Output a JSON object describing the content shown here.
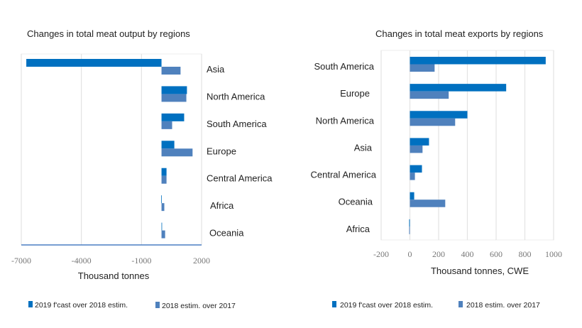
{
  "colors": {
    "series1": "#0070c0",
    "series2": "#4f81bd",
    "grid": "#e3e3e3",
    "axis": "#4a7ec4"
  },
  "chart_data": [
    {
      "type": "bar",
      "orientation": "horizontal",
      "title": "Changes in total meat output by regions",
      "xlabel": "Thousand tonnes",
      "xlim": [
        -7000,
        2000
      ],
      "xticks": [
        "-7000",
        "-4000",
        "-1000",
        "2000"
      ],
      "xtick_values": [
        -7000,
        -4000,
        -1000,
        2000
      ],
      "grid": true,
      "legend": "bottom",
      "categories": [
        "Asia",
        "North America",
        "South America",
        "Europe",
        "Central America",
        "Africa",
        "Oceania"
      ],
      "series": [
        {
          "name": "2019 f'cast over 2018 estim.",
          "values": [
            -6750,
            1270,
            1130,
            640,
            250,
            -20,
            0
          ]
        },
        {
          "name": "2018 estim. over 2017",
          "values": [
            950,
            1240,
            530,
            1550,
            250,
            140,
            180
          ]
        }
      ]
    },
    {
      "type": "bar",
      "orientation": "horizontal",
      "title": "Changes in total meat exports by regions",
      "xlabel": "Thousand tonnes, CWE",
      "xlim": [
        -200,
        1000
      ],
      "xticks": [
        "-200",
        "0",
        "200",
        "400",
        "600",
        "800",
        "1000"
      ],
      "xtick_values": [
        -200,
        0,
        200,
        400,
        600,
        800,
        1000
      ],
      "grid": true,
      "legend": "bottom",
      "categories": [
        "South America",
        "Europe",
        "North America",
        "Asia",
        "Central America",
        "Oceania",
        "Africa"
      ],
      "series": [
        {
          "name": "2019 f'cast over 2018 estim.",
          "values": [
            945,
            670,
            400,
            133,
            84,
            30,
            -5
          ]
        },
        {
          "name": "2018 estim. over 2017",
          "values": [
            172,
            270,
            315,
            88,
            35,
            246,
            -5
          ]
        }
      ]
    }
  ]
}
